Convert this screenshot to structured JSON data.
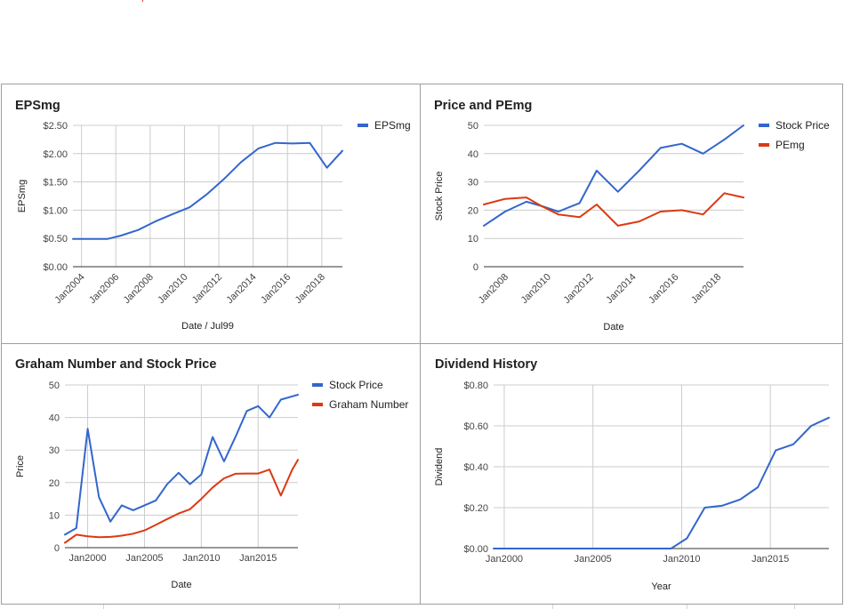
{
  "colors": {
    "blue": "#3366cc",
    "red": "#dc3912"
  },
  "chart_data": [
    {
      "type": "line",
      "title": "EPSmg",
      "xlabel": "Date / Jul99",
      "ylabel": "EPSmg",
      "x_type": "year",
      "xlim": [
        2003.5,
        2019.2
      ],
      "ylim": [
        0,
        2.5
      ],
      "y_prefix": "$",
      "y_decimals": 2,
      "yticks": [
        0,
        0.5,
        1.0,
        1.5,
        2.0,
        2.5
      ],
      "y_tick_labels": [
        "$0.00",
        "$0.50",
        "$1.00",
        "$1.50",
        "$2.00",
        "$2.50"
      ],
      "xticks": [
        2004,
        2006,
        2008,
        2010,
        2012,
        2014,
        2016,
        2018
      ],
      "x_tick_labels": [
        "Jan2004",
        "Jan2006",
        "Jan2008",
        "Jan2010",
        "Jan2012",
        "Jan2014",
        "Jan2016",
        "Jan2018"
      ],
      "x_label_rotate": true,
      "grid": true,
      "legend": "right",
      "x": [
        2003.5,
        2004.5,
        2005.5,
        2006.3,
        2007.3,
        2008.3,
        2009.3,
        2010.3,
        2011.3,
        2012.3,
        2013.3,
        2014.3,
        2015.3,
        2016.3,
        2017.3,
        2018.3,
        2019.2
      ],
      "series": [
        {
          "name": "EPSmg",
          "color": "#3366cc",
          "values": [
            0.49,
            0.49,
            0.49,
            0.55,
            0.65,
            0.8,
            0.93,
            1.05,
            1.28,
            1.55,
            1.85,
            2.09,
            2.19,
            2.18,
            2.19,
            1.75,
            2.05
          ]
        }
      ]
    },
    {
      "type": "line",
      "title": "Price and PEmg",
      "xlabel": "Date",
      "ylabel": "Stock Price",
      "x_type": "year",
      "xlim": [
        2007.0,
        2019.2
      ],
      "ylim": [
        0,
        50
      ],
      "y_prefix": "",
      "y_decimals": 0,
      "yticks": [
        0,
        10,
        20,
        30,
        40,
        50
      ],
      "y_tick_labels": [
        "0",
        "10",
        "20",
        "30",
        "40",
        "50"
      ],
      "xticks": [
        2008,
        2010,
        2012,
        2014,
        2016,
        2018
      ],
      "x_tick_labels": [
        "Jan2008",
        "Jan2010",
        "Jan2012",
        "Jan2014",
        "Jan2016",
        "Jan2018"
      ],
      "x_label_rotate": true,
      "grid": false,
      "legend": "right",
      "x": [
        2007.0,
        2008.0,
        2009.0,
        2009.7,
        2010.5,
        2011.5,
        2012.3,
        2013.3,
        2014.3,
        2015.3,
        2016.3,
        2017.3,
        2018.3,
        2019.2
      ],
      "series": [
        {
          "name": "Stock Price",
          "color": "#3366cc",
          "values": [
            14.5,
            19.5,
            23.0,
            21.5,
            19.5,
            22.5,
            34.0,
            26.5,
            34.0,
            42.0,
            43.5,
            40.0,
            45.0,
            50.0
          ]
        },
        {
          "name": "PEmg",
          "color": "#dc3912",
          "values": [
            22.0,
            24.0,
            24.5,
            21.5,
            18.5,
            17.5,
            22.0,
            14.5,
            16.0,
            19.5,
            20.0,
            18.5,
            26.0,
            24.5
          ]
        }
      ]
    },
    {
      "type": "line",
      "title": "Graham Number and Stock Price",
      "xlabel": "Date",
      "ylabel": "Price",
      "x_type": "year",
      "xlim": [
        1998.0,
        2018.5
      ],
      "ylim": [
        0,
        50
      ],
      "y_prefix": "",
      "y_decimals": 0,
      "yticks": [
        0,
        10,
        20,
        30,
        40,
        50
      ],
      "y_tick_labels": [
        "0",
        "10",
        "20",
        "30",
        "40",
        "50"
      ],
      "xticks": [
        2000,
        2005,
        2010,
        2015
      ],
      "x_tick_labels": [
        "Jan2000",
        "Jan2005",
        "Jan2010",
        "Jan2015"
      ],
      "x_label_rotate": false,
      "grid": true,
      "legend": "right",
      "x": [
        1998.0,
        1999.0,
        2000.0,
        2001.0,
        2002.0,
        2003.0,
        2004.0,
        2005.0,
        2006.0,
        2007.0,
        2008.0,
        2009.0,
        2010.0,
        2011.0,
        2012.0,
        2013.0,
        2014.0,
        2015.0,
        2016.0,
        2017.0,
        2018.0,
        2018.5
      ],
      "series": [
        {
          "name": "Stock Price",
          "color": "#3366cc",
          "values": [
            4.0,
            6.0,
            36.5,
            15.5,
            8.0,
            13.0,
            11.5,
            13.0,
            14.5,
            19.5,
            23.0,
            19.5,
            22.5,
            34.0,
            26.5,
            34.0,
            42.0,
            43.5,
            40.0,
            45.5,
            46.5,
            47.0
          ]
        },
        {
          "name": "Graham Number",
          "color": "#dc3912",
          "values": [
            1.5,
            4.0,
            3.5,
            3.2,
            3.3,
            3.7,
            4.3,
            5.3,
            7.0,
            8.8,
            10.5,
            11.8,
            15.0,
            18.5,
            21.3,
            22.7,
            22.8,
            22.8,
            24.0,
            16.0,
            24.0,
            27.0
          ]
        }
      ]
    },
    {
      "type": "line",
      "title": "Dividend History",
      "xlabel": "Year",
      "ylabel": "Dividend",
      "x_type": "year",
      "xlim": [
        1999.4,
        2018.3
      ],
      "ylim": [
        0,
        0.8
      ],
      "y_prefix": "$",
      "y_decimals": 2,
      "yticks": [
        0,
        0.2,
        0.4,
        0.6,
        0.8
      ],
      "y_tick_labels": [
        "$0.00",
        "$0.20",
        "$0.40",
        "$0.60",
        "$0.80"
      ],
      "xticks": [
        2000,
        2005,
        2010,
        2015
      ],
      "x_tick_labels": [
        "Jan2000",
        "Jan2005",
        "Jan2010",
        "Jan2015"
      ],
      "x_label_rotate": false,
      "grid": true,
      "legend": "none",
      "x": [
        1999.4,
        2005.0,
        2009.4,
        2010.3,
        2011.3,
        2012.3,
        2013.3,
        2014.3,
        2015.3,
        2016.3,
        2017.3,
        2018.3
      ],
      "series": [
        {
          "name": "",
          "color": "#3366cc",
          "values": [
            0.0,
            0.0,
            0.0,
            0.05,
            0.2,
            0.21,
            0.24,
            0.3,
            0.48,
            0.51,
            0.6,
            0.64
          ]
        }
      ]
    }
  ]
}
